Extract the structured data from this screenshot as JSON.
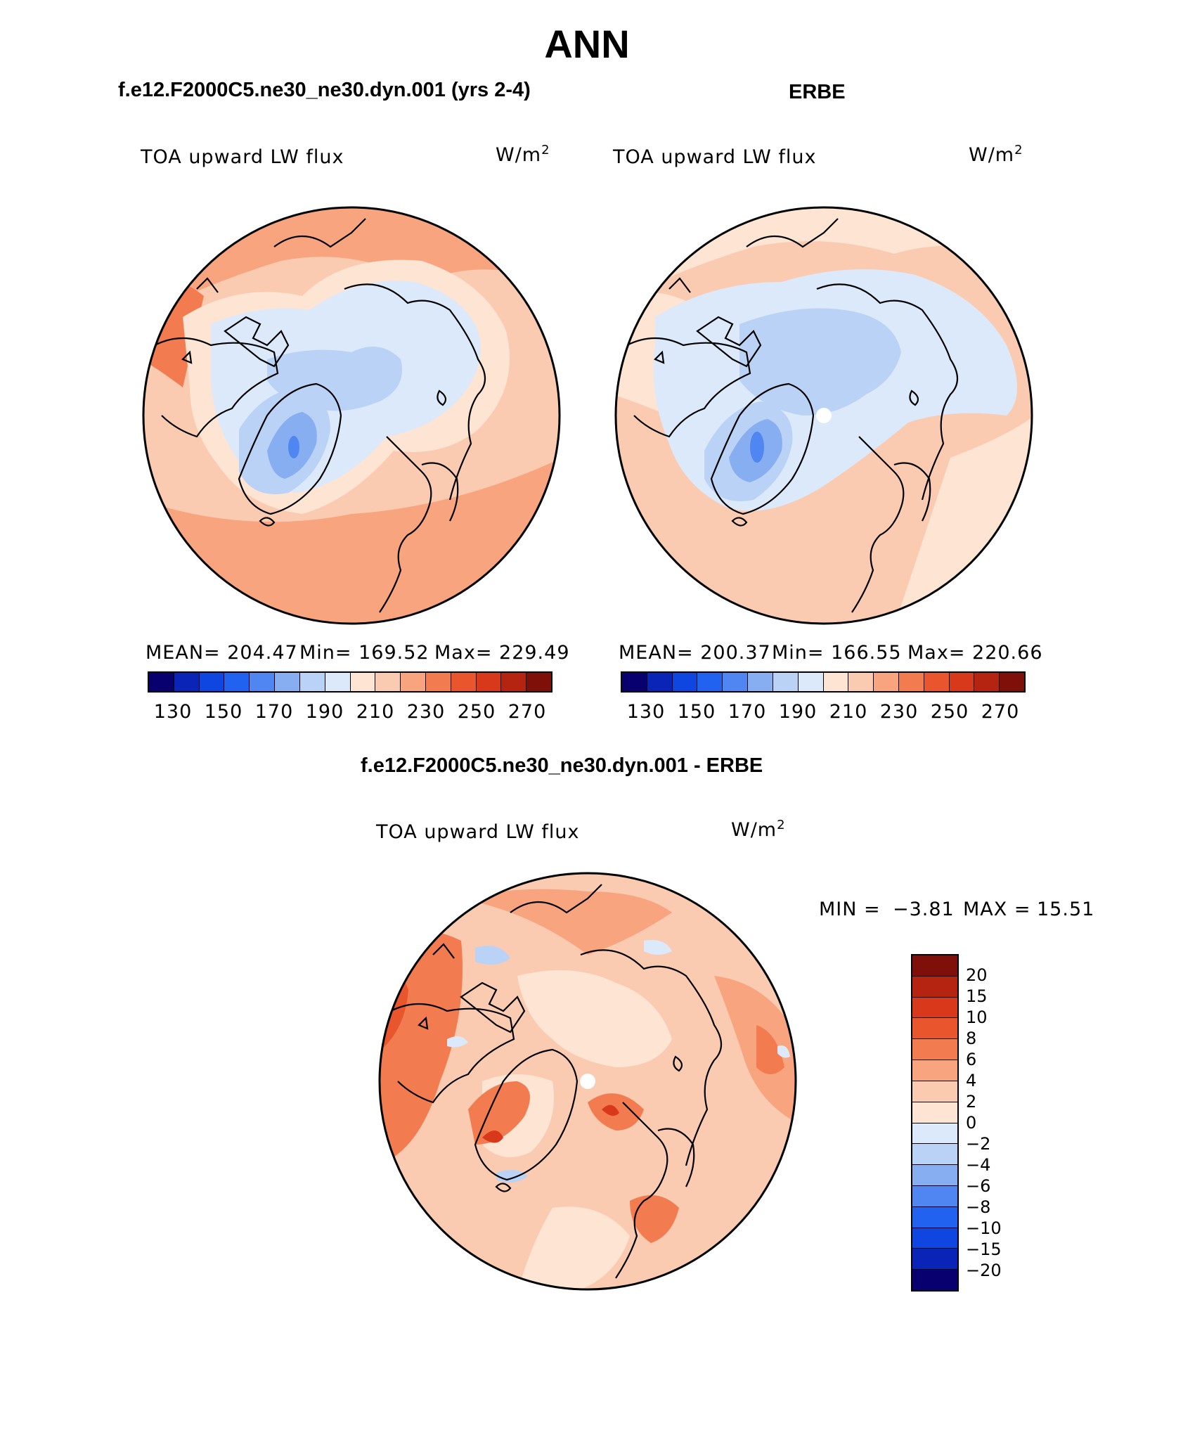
{
  "figure": {
    "title": "ANN",
    "panels": {
      "model": {
        "title": "f.e12.F2000C5.ne30_ne30.dyn.001 (yrs 2-4)",
        "variable": "TOA upward LW flux",
        "units": "W/m",
        "units_sup": "2",
        "mean": "MEAN= 204.47",
        "min": "Min= 169.52",
        "max": "Max= 229.49"
      },
      "obs": {
        "title": "ERBE",
        "variable": "TOA upward LW flux",
        "units": "W/m",
        "units_sup": "2",
        "mean": "MEAN= 200.37",
        "min": "Min= 166.55",
        "max": "Max= 220.66"
      },
      "diff": {
        "title": "f.e12.F2000C5.ne30_ne30.dyn.001 - ERBE",
        "variable": "TOA upward LW flux",
        "units": "W/m",
        "units_sup": "2",
        "min_label": "MIN =",
        "min_value": "−3.81",
        "max_label": "MAX =",
        "max_value": "15.51"
      }
    },
    "abs_colorbar": {
      "colors": [
        "#08006e",
        "#0a24b8",
        "#0f45e0",
        "#2162f0",
        "#4f86f2",
        "#86aef0",
        "#b9d2f6",
        "#dbe9fa",
        "#fde4d3",
        "#fbcbb1",
        "#f7a47f",
        "#f27c4f",
        "#e9552c",
        "#d8391a",
        "#b52410",
        "#7e1009"
      ],
      "tick_labels": [
        "130",
        "150",
        "170",
        "190",
        "210",
        "230",
        "250",
        "270"
      ]
    },
    "diff_colorbar": {
      "colors": [
        "#7e1009",
        "#b52410",
        "#d8391a",
        "#e9552c",
        "#f27c4f",
        "#f7a47f",
        "#fbcbb1",
        "#fde4d3",
        "#dbe9fa",
        "#b9d2f6",
        "#86aef0",
        "#4f86f2",
        "#2162f0",
        "#0f45e0",
        "#0a24b8",
        "#08006e"
      ],
      "tick_labels": [
        "20",
        "15",
        "10",
        "8",
        "6",
        "4",
        "2",
        "0",
        "−2",
        "−4",
        "−6",
        "−8",
        "−10",
        "−15",
        "−20"
      ]
    }
  }
}
